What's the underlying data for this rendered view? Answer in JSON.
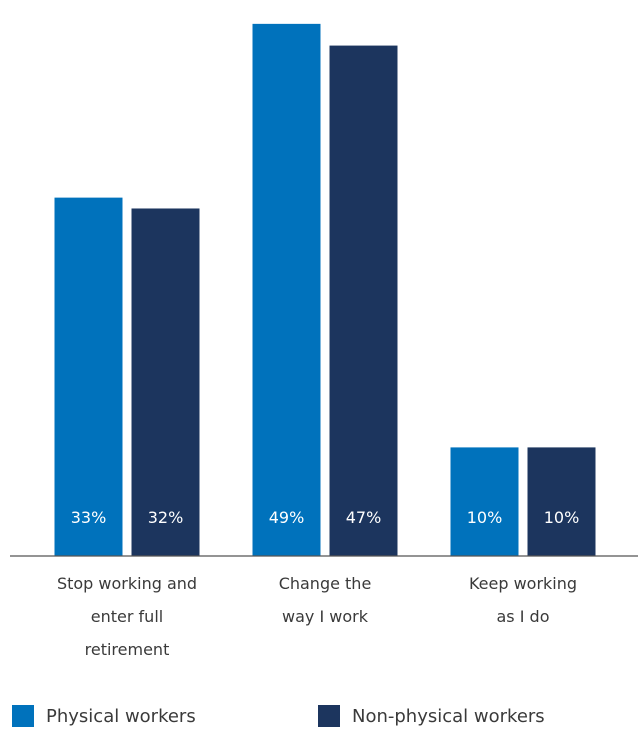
{
  "chart_data": {
    "type": "bar",
    "categories": [
      [
        "Stop working and",
        "enter full",
        "retirement"
      ],
      [
        "Change the",
        "way I work"
      ],
      [
        "Keep working",
        "as I do"
      ]
    ],
    "series": [
      {
        "name": "Physical workers",
        "values": [
          33,
          49,
          10
        ],
        "labels": [
          "33%",
          "49%",
          "10%"
        ],
        "color": "#0072bc"
      },
      {
        "name": "Non-physical workers",
        "values": [
          32,
          47,
          10
        ],
        "labels": [
          "32%",
          "47%",
          "10%"
        ],
        "color": "#1c355e"
      }
    ],
    "ylim": [
      0,
      50
    ],
    "grid": false,
    "legend_position": "bottom"
  }
}
